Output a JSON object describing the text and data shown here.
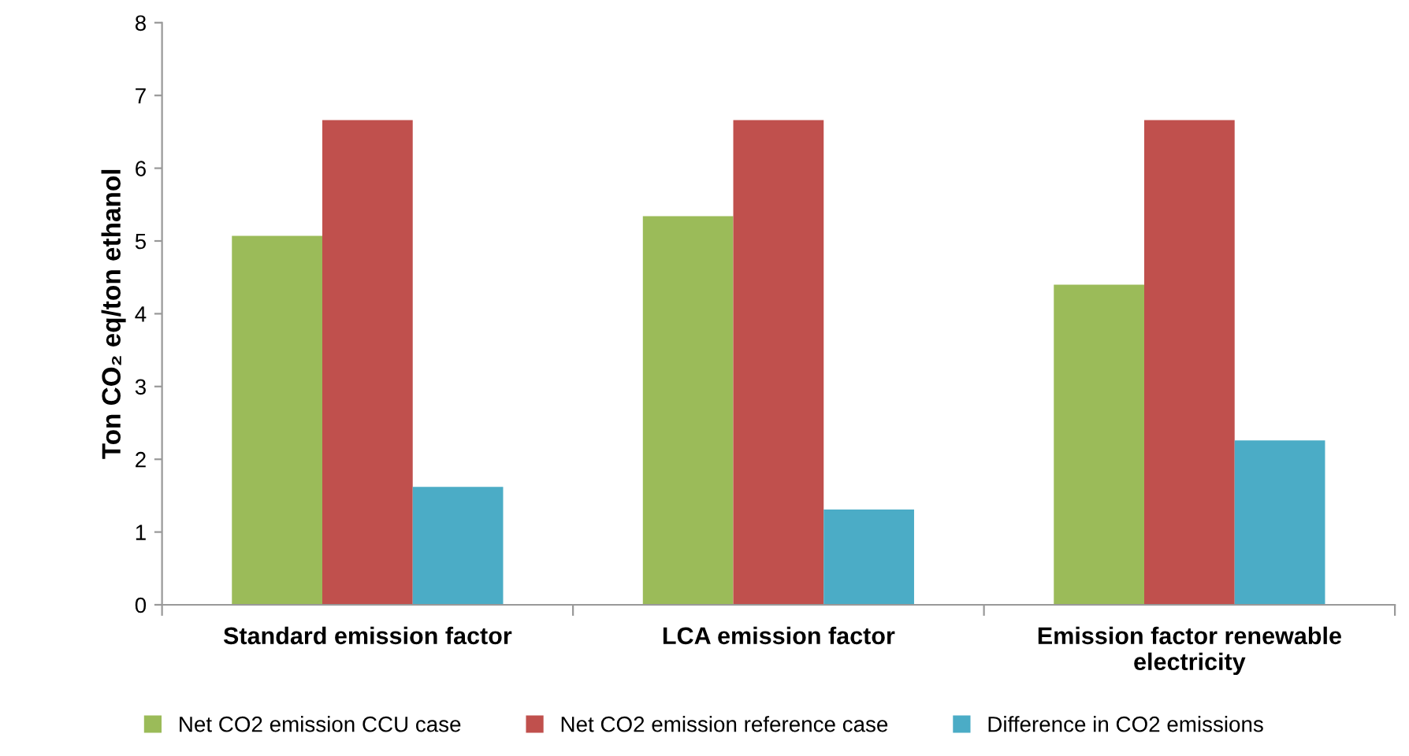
{
  "chart_data": {
    "type": "bar",
    "ylabel": "Ton CO₂ eq/ton ethanol",
    "categories": [
      "Standard emission factor",
      "LCA emission factor",
      "Emission factor renewable\nelectricity"
    ],
    "series": [
      {
        "name": "Net CO2 emission CCU case",
        "color": "#9bbb59",
        "values": [
          5.07,
          5.34,
          4.4
        ]
      },
      {
        "name": "Net CO2 emission reference case",
        "color": "#c0504d",
        "values": [
          6.66,
          6.66,
          6.66
        ]
      },
      {
        "name": "Difference in CO2 emissions",
        "color": "#4bacc6",
        "values": [
          1.62,
          1.31,
          2.26
        ]
      }
    ],
    "ylim": [
      0,
      8
    ],
    "yticks": [
      0,
      1,
      2,
      3,
      4,
      5,
      6,
      7,
      8
    ],
    "grid": false,
    "legend": "bottom"
  }
}
